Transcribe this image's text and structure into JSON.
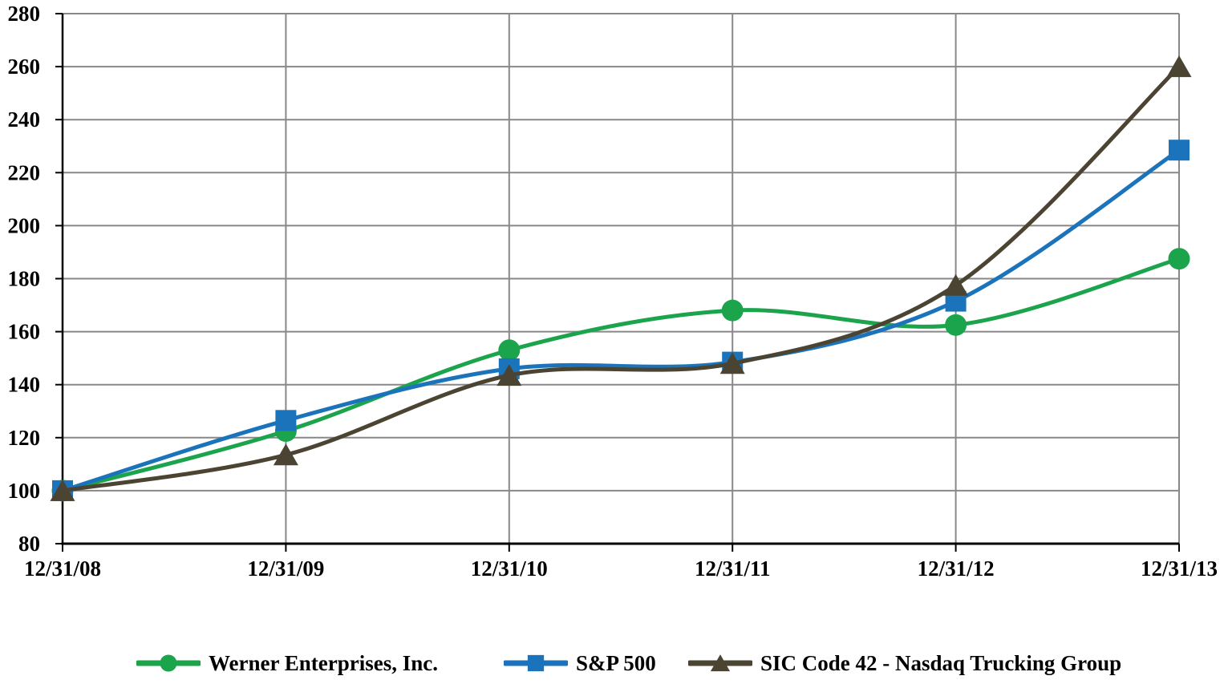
{
  "chart_data": {
    "type": "line",
    "title": "",
    "xlabel": "",
    "ylabel": "",
    "categories": [
      "12/31/08",
      "12/31/09",
      "12/31/10",
      "12/31/11",
      "12/31/12",
      "12/31/13"
    ],
    "series": [
      {
        "name": "Werner Enterprises, Inc.",
        "marker": "circle",
        "color": "#1CA44D",
        "values": [
          100,
          122.5,
          153,
          168,
          162.5,
          187.5
        ]
      },
      {
        "name": "S&P 500",
        "marker": "square",
        "color": "#1B74BB",
        "values": [
          100,
          126.5,
          146,
          148.5,
          171.5,
          228.5
        ]
      },
      {
        "name": "SIC Code 42 - Nasdaq Trucking Group",
        "marker": "triangle",
        "color": "#4B4433",
        "values": [
          100,
          113.5,
          143.5,
          148,
          177.5,
          260
        ]
      }
    ],
    "ylim": [
      80,
      280
    ],
    "ytick_step": 20,
    "yticks": [
      80,
      100,
      120,
      140,
      160,
      180,
      200,
      220,
      240,
      260,
      280
    ],
    "grid": true,
    "line_style": "smooth",
    "legend_position": "bottom",
    "colors": {
      "grid": "#888888",
      "axis": "#000000",
      "text": "#000000",
      "background": "#FFFFFF"
    }
  }
}
